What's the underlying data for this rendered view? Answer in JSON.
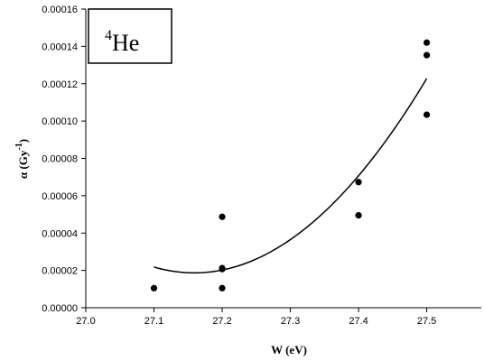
{
  "chart_data": {
    "type": "scatter",
    "annotation": {
      "superscript": "4",
      "text": "He"
    },
    "xlabel": "W (eV)",
    "ylabel_symbol": "α",
    "ylabel_unit_base": "(Gy",
    "ylabel_unit_exp": "-1",
    "ylabel_unit_close": ")",
    "xlim": [
      27.0,
      27.58
    ],
    "ylim": [
      0,
      0.00016
    ],
    "x_ticks": [
      "27.0",
      "27.1",
      "27.2",
      "27.3",
      "27.4",
      "27.5"
    ],
    "y_ticks": [
      "0.00000",
      "0.00002",
      "0.00004",
      "0.00006",
      "0.00008",
      "0.00010",
      "0.00012",
      "0.00014",
      "0.00016"
    ],
    "grid": false,
    "points": [
      {
        "x": 27.1,
        "y": 1.05e-05
      },
      {
        "x": 27.2,
        "y": 4.87e-05
      },
      {
        "x": 27.2,
        "y": 2.12e-05
      },
      {
        "x": 27.2,
        "y": 2.07e-05
      },
      {
        "x": 27.2,
        "y": 1.05e-05
      },
      {
        "x": 27.4,
        "y": 6.73e-05
      },
      {
        "x": 27.4,
        "y": 4.95e-05
      },
      {
        "x": 27.5,
        "y": 0.000142
      },
      {
        "x": 27.5,
        "y": 0.0001353
      },
      {
        "x": 27.5,
        "y": 0.0001034
      }
    ],
    "trendline": {
      "type": "polynomial",
      "x_range": [
        27.1,
        27.5
      ],
      "samples": [
        {
          "x": 27.1,
          "y": 2.18e-05
        },
        {
          "x": 27.166,
          "y": 1.84e-05
        },
        {
          "x": 27.3,
          "y": 3.65e-05
        },
        {
          "x": 27.5,
          "y": 0.0001228
        }
      ]
    },
    "colors": {
      "marker": "#000000",
      "line": "#000000",
      "axis": "#000000"
    }
  }
}
